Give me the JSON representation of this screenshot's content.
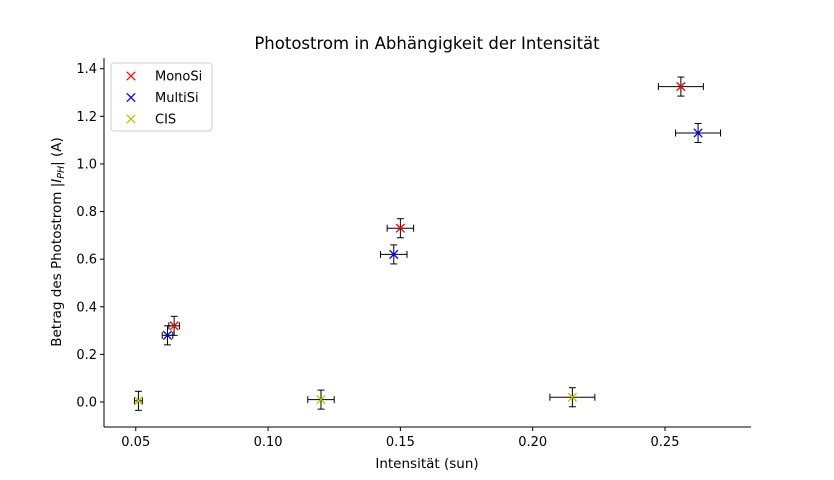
{
  "chart_data": {
    "type": "scatter",
    "title": "Photostrom in Abhängigkeit der Intensität",
    "xlabel": "Intensität (sun)",
    "ylabel_prefix": "Betrag des Photostrom |",
    "ylabel_var": "I",
    "ylabel_sub": "PH",
    "ylabel_suffix": "| (A)",
    "xlim": [
      0.038,
      0.2825
    ],
    "ylim": [
      -0.105,
      1.445
    ],
    "xticks": [
      0.05,
      0.1,
      0.15,
      0.2,
      0.25
    ],
    "xtick_labels": [
      "0.05",
      "0.10",
      "0.15",
      "0.20",
      "0.25"
    ],
    "yticks": [
      0.0,
      0.2,
      0.4,
      0.6,
      0.8,
      1.0,
      1.2,
      1.4
    ],
    "ytick_labels": [
      "0.0",
      "0.2",
      "0.4",
      "0.6",
      "0.8",
      "1.0",
      "1.2",
      "1.4"
    ],
    "grid": false,
    "legend_position": "top-left",
    "series": [
      {
        "name": "MonoSi",
        "color": "#ff0000",
        "marker": "x",
        "points": [
          {
            "x": 0.0645,
            "y": 0.32,
            "xerr": 0.002,
            "yerr": 0.04
          },
          {
            "x": 0.15,
            "y": 0.73,
            "xerr": 0.005,
            "yerr": 0.04
          },
          {
            "x": 0.256,
            "y": 1.325,
            "xerr": 0.0085,
            "yerr": 0.04
          }
        ]
      },
      {
        "name": "MultiSi",
        "color": "#0000ff",
        "marker": "x",
        "points": [
          {
            "x": 0.062,
            "y": 0.28,
            "xerr": 0.002,
            "yerr": 0.04
          },
          {
            "x": 0.1475,
            "y": 0.62,
            "xerr": 0.005,
            "yerr": 0.04
          },
          {
            "x": 0.2625,
            "y": 1.13,
            "xerr": 0.0085,
            "yerr": 0.04
          }
        ]
      },
      {
        "name": "CIS",
        "color": "#bfbf00",
        "marker": "x",
        "points": [
          {
            "x": 0.051,
            "y": 0.005,
            "xerr": 0.0015,
            "yerr": 0.04
          },
          {
            "x": 0.12,
            "y": 0.01,
            "xerr": 0.005,
            "yerr": 0.04
          },
          {
            "x": 0.215,
            "y": 0.02,
            "xerr": 0.0085,
            "yerr": 0.04
          }
        ]
      }
    ]
  }
}
